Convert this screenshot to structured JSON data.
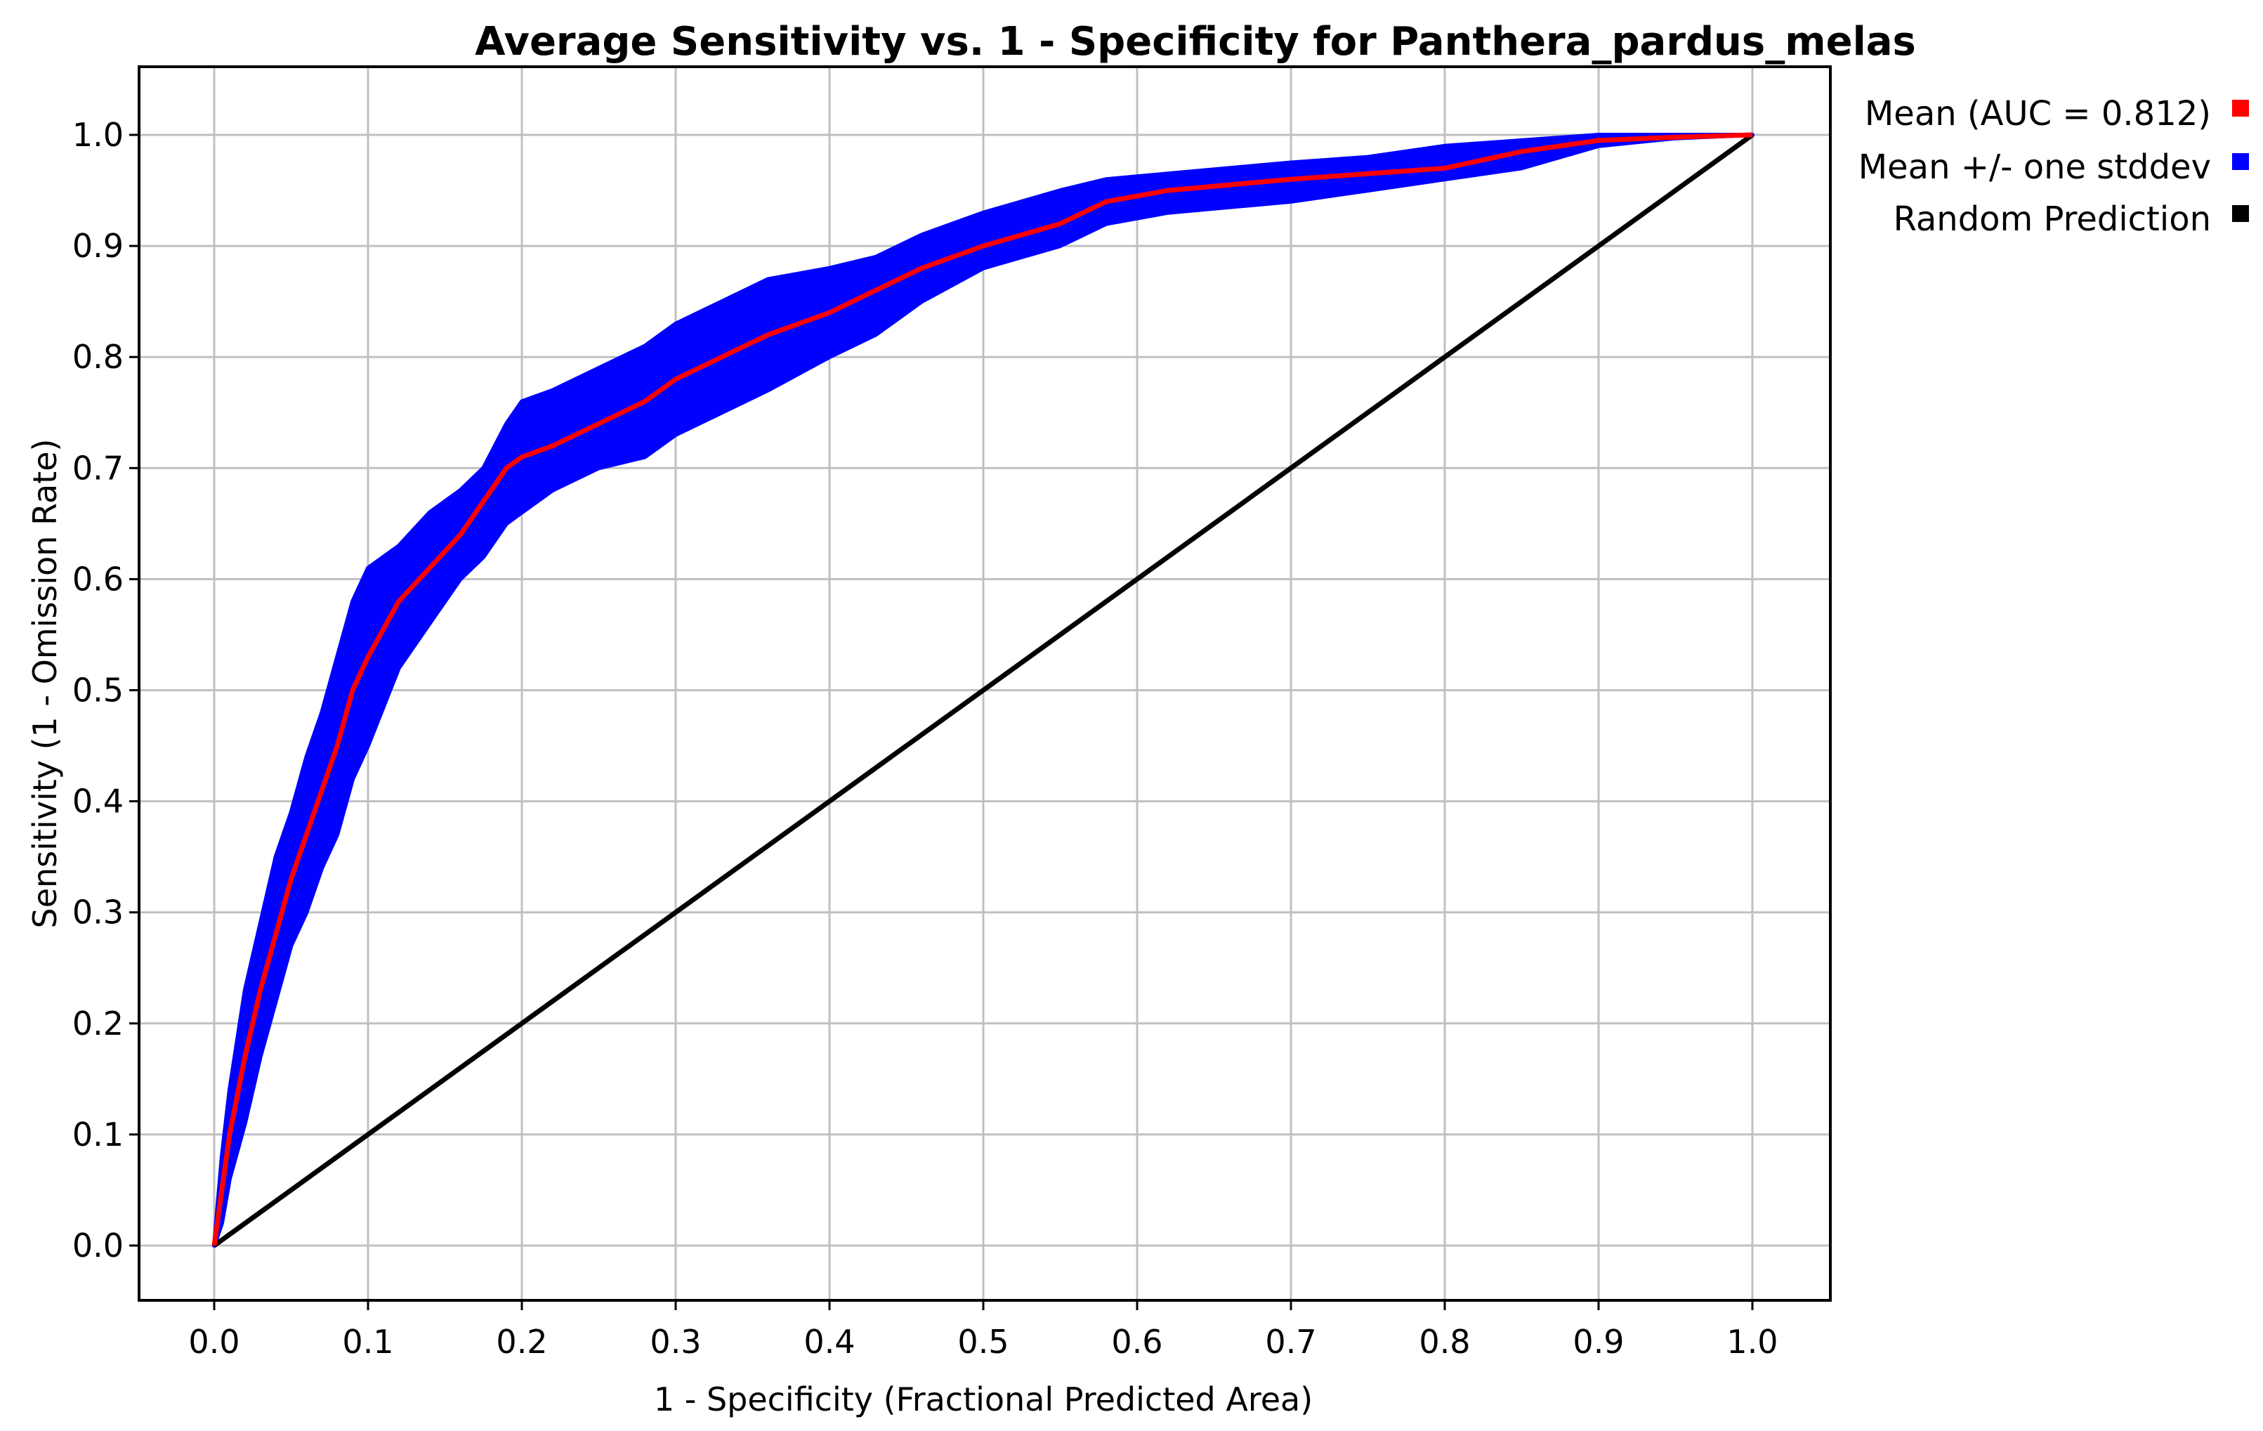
{
  "chart_data": {
    "type": "line",
    "title": "Average Sensitivity vs. 1 - Specificity for Panthera_pardus_melas",
    "xlabel": "1 - Specificity (Fractional Predicted Area)",
    "ylabel": "Sensitivity (1 - Omission Rate)",
    "xlim": [
      0,
      1
    ],
    "ylim": [
      0,
      1
    ],
    "grid": true,
    "legend_position": "outside-top-right",
    "x_ticks": [
      "0.0",
      "0.1",
      "0.2",
      "0.3",
      "0.4",
      "0.5",
      "0.6",
      "0.7",
      "0.8",
      "0.9",
      "1.0"
    ],
    "y_ticks": [
      "0.0",
      "0.1",
      "0.2",
      "0.3",
      "0.4",
      "0.5",
      "0.6",
      "0.7",
      "0.8",
      "0.9",
      "1.0"
    ],
    "colors": {
      "mean": "#ff0000",
      "band": "#0000ff",
      "random": "#000000",
      "grid": "#c0c0c0",
      "frame": "#000000"
    },
    "x": [
      0,
      0.005,
      0.01,
      0.02,
      0.03,
      0.04,
      0.05,
      0.06,
      0.07,
      0.08,
      0.09,
      0.1,
      0.12,
      0.14,
      0.16,
      0.175,
      0.19,
      0.2,
      0.22,
      0.25,
      0.28,
      0.3,
      0.33,
      0.36,
      0.4,
      0.43,
      0.46,
      0.5,
      0.55,
      0.58,
      0.62,
      0.66,
      0.7,
      0.75,
      0.8,
      0.85,
      0.9,
      0.95,
      1.0
    ],
    "series": [
      {
        "name": "Mean (AUC = 0.812)",
        "role": "mean",
        "values": [
          0,
          0.05,
          0.1,
          0.17,
          0.23,
          0.28,
          0.33,
          0.37,
          0.41,
          0.45,
          0.5,
          0.53,
          0.58,
          0.61,
          0.64,
          0.67,
          0.7,
          0.71,
          0.72,
          0.74,
          0.76,
          0.78,
          0.8,
          0.82,
          0.84,
          0.86,
          0.88,
          0.9,
          0.92,
          0.94,
          0.95,
          0.955,
          0.96,
          0.965,
          0.97,
          0.985,
          0.995,
          0.998,
          1.0
        ]
      },
      {
        "name": "Mean +/- one stddev",
        "role": "band",
        "upper": [
          0,
          0.08,
          0.14,
          0.23,
          0.29,
          0.35,
          0.39,
          0.44,
          0.48,
          0.53,
          0.58,
          0.61,
          0.63,
          0.66,
          0.68,
          0.7,
          0.74,
          0.76,
          0.77,
          0.79,
          0.81,
          0.83,
          0.85,
          0.87,
          0.88,
          0.89,
          0.91,
          0.93,
          0.95,
          0.96,
          0.965,
          0.97,
          0.975,
          0.98,
          0.99,
          0.995,
          1.0,
          1.0,
          1.0
        ],
        "lower": [
          0,
          0.02,
          0.06,
          0.11,
          0.17,
          0.22,
          0.27,
          0.3,
          0.34,
          0.37,
          0.42,
          0.45,
          0.52,
          0.56,
          0.6,
          0.62,
          0.65,
          0.66,
          0.68,
          0.7,
          0.71,
          0.73,
          0.75,
          0.77,
          0.8,
          0.82,
          0.85,
          0.88,
          0.9,
          0.92,
          0.93,
          0.935,
          0.94,
          0.95,
          0.96,
          0.97,
          0.99,
          0.997,
          1.0
        ]
      },
      {
        "name": "Random Prediction",
        "role": "random",
        "x": [
          0,
          1
        ],
        "values": [
          0,
          1
        ]
      }
    ]
  }
}
